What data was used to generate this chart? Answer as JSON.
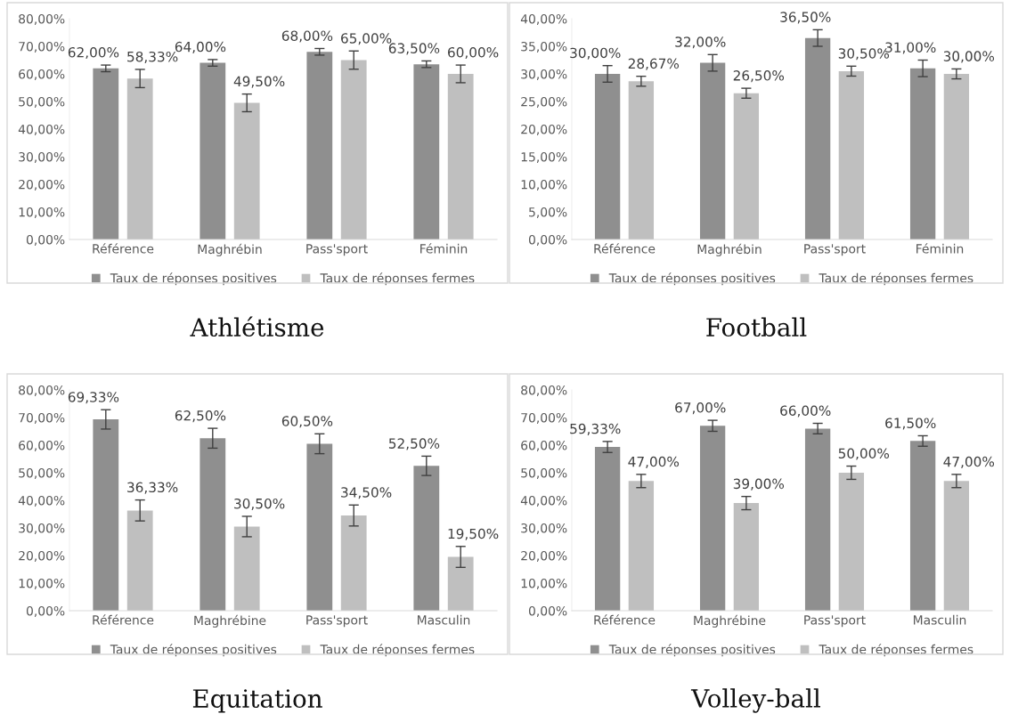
{
  "chart_data": [
    {
      "type": "bar",
      "title": "Athlétisme",
      "categories": [
        "Référence",
        "Maghrébin",
        "Pass'sport",
        "Féminin"
      ],
      "ylim": [
        0,
        80
      ],
      "yticks": [
        {
          "value": 0,
          "label": "0,00%"
        },
        {
          "value": 10,
          "label": "10,00%"
        },
        {
          "value": 20,
          "label": "20,00%"
        },
        {
          "value": 30,
          "label": "30,00%"
        },
        {
          "value": 40,
          "label": "40,00%"
        },
        {
          "value": 50,
          "label": "50,00%"
        },
        {
          "value": 60,
          "label": "60,00%"
        },
        {
          "value": 70,
          "label": "70,00%"
        },
        {
          "value": 80,
          "label": "80,00%"
        }
      ],
      "legend": "bottom",
      "series": [
        {
          "name": "Taux de réponses positives",
          "color": "#8f8f8f",
          "values": [
            62.0,
            64.0,
            68.0,
            63.5
          ],
          "errors": [
            1.2,
            1.2,
            1.2,
            1.2
          ],
          "value_labels": [
            "62,00%",
            "64,00%",
            "68,00%",
            "63,50%"
          ]
        },
        {
          "name": "Taux de réponses fermes",
          "color": "#bfbfbf",
          "values": [
            58.33,
            49.5,
            65.0,
            60.0
          ],
          "errors": [
            3.3,
            3.2,
            3.3,
            3.2
          ],
          "value_labels": [
            "58,33%",
            "49,50%",
            "65,00%",
            "60,00%"
          ]
        }
      ]
    },
    {
      "type": "bar",
      "title": "Football",
      "categories": [
        "Référence",
        "Maghrébin",
        "Pass'sport",
        "Féminin"
      ],
      "ylim": [
        0,
        40
      ],
      "yticks": [
        {
          "value": 0,
          "label": "0,00%"
        },
        {
          "value": 5,
          "label": "5,00%"
        },
        {
          "value": 10,
          "label": "10,00%"
        },
        {
          "value": 15,
          "label": "15,00%"
        },
        {
          "value": 20,
          "label": "20,00%"
        },
        {
          "value": 25,
          "label": "25,00%"
        },
        {
          "value": 30,
          "label": "30,00%"
        },
        {
          "value": 35,
          "label": "35,00%"
        },
        {
          "value": 40,
          "label": "40,00%"
        }
      ],
      "legend": "bottom",
      "series": [
        {
          "name": "Taux de réponses positives",
          "color": "#8f8f8f",
          "values": [
            30.0,
            32.0,
            36.5,
            31.0
          ],
          "errors": [
            1.5,
            1.5,
            1.5,
            1.5
          ],
          "value_labels": [
            "30,00%",
            "32,00%",
            "36,50%",
            "31,00%"
          ]
        },
        {
          "name": "Taux de réponses fermes",
          "color": "#bfbfbf",
          "values": [
            28.67,
            26.5,
            30.5,
            30.0
          ],
          "errors": [
            0.9,
            0.9,
            0.9,
            0.9
          ],
          "value_labels": [
            "28,67%",
            "26,50%",
            "30,50%",
            "30,00%"
          ]
        }
      ]
    },
    {
      "type": "bar",
      "title": "Equitation",
      "categories": [
        "Référence",
        "Maghrébine",
        "Pass'sport",
        "Masculin"
      ],
      "ylim": [
        0,
        80
      ],
      "yticks": [
        {
          "value": 0,
          "label": "0,00%"
        },
        {
          "value": 10,
          "label": "10,00%"
        },
        {
          "value": 20,
          "label": "20,00%"
        },
        {
          "value": 30,
          "label": "30,00%"
        },
        {
          "value": 40,
          "label": "40,00%"
        },
        {
          "value": 50,
          "label": "50,00%"
        },
        {
          "value": 60,
          "label": "60,00%"
        },
        {
          "value": 70,
          "label": "70,00%"
        },
        {
          "value": 80,
          "label": "80,00%"
        }
      ],
      "legend": "bottom",
      "series": [
        {
          "name": "Taux de réponses positives",
          "color": "#8f8f8f",
          "values": [
            69.33,
            62.5,
            60.5,
            52.5
          ],
          "errors": [
            3.5,
            3.6,
            3.6,
            3.5
          ],
          "value_labels": [
            "69,33%",
            "62,50%",
            "60,50%",
            "52,50%"
          ]
        },
        {
          "name": "Taux de réponses fermes",
          "color": "#bfbfbf",
          "values": [
            36.33,
            30.5,
            34.5,
            19.5
          ],
          "errors": [
            3.8,
            3.7,
            3.8,
            3.8
          ],
          "value_labels": [
            "36,33%",
            "30,50%",
            "34,50%",
            "19,50%"
          ]
        }
      ]
    },
    {
      "type": "bar",
      "title": "Volley-ball",
      "categories": [
        "Référence",
        "Maghrébine",
        "Pass'sport",
        "Masculin"
      ],
      "ylim": [
        0,
        80
      ],
      "yticks": [
        {
          "value": 0,
          "label": "0,00%"
        },
        {
          "value": 10,
          "label": "10,00%"
        },
        {
          "value": 20,
          "label": "20,00%"
        },
        {
          "value": 30,
          "label": "30,00%"
        },
        {
          "value": 40,
          "label": "40,00%"
        },
        {
          "value": 50,
          "label": "50,00%"
        },
        {
          "value": 60,
          "label": "60,00%"
        },
        {
          "value": 70,
          "label": "70,00%"
        },
        {
          "value": 80,
          "label": "80,00%"
        }
      ],
      "legend": "bottom",
      "series": [
        {
          "name": "Taux de réponses positives",
          "color": "#8f8f8f",
          "values": [
            59.33,
            67.0,
            66.0,
            61.5
          ],
          "errors": [
            2.0,
            2.0,
            1.9,
            1.9
          ],
          "value_labels": [
            "59,33%",
            "67,00%",
            "66,00%",
            "61,50%"
          ]
        },
        {
          "name": "Taux de réponses fermes",
          "color": "#bfbfbf",
          "values": [
            47.0,
            39.0,
            50.0,
            47.0
          ],
          "errors": [
            2.4,
            2.4,
            2.4,
            2.4
          ],
          "value_labels": [
            "47,00%",
            "39,00%",
            "50,00%",
            "47,00%"
          ]
        }
      ]
    }
  ]
}
